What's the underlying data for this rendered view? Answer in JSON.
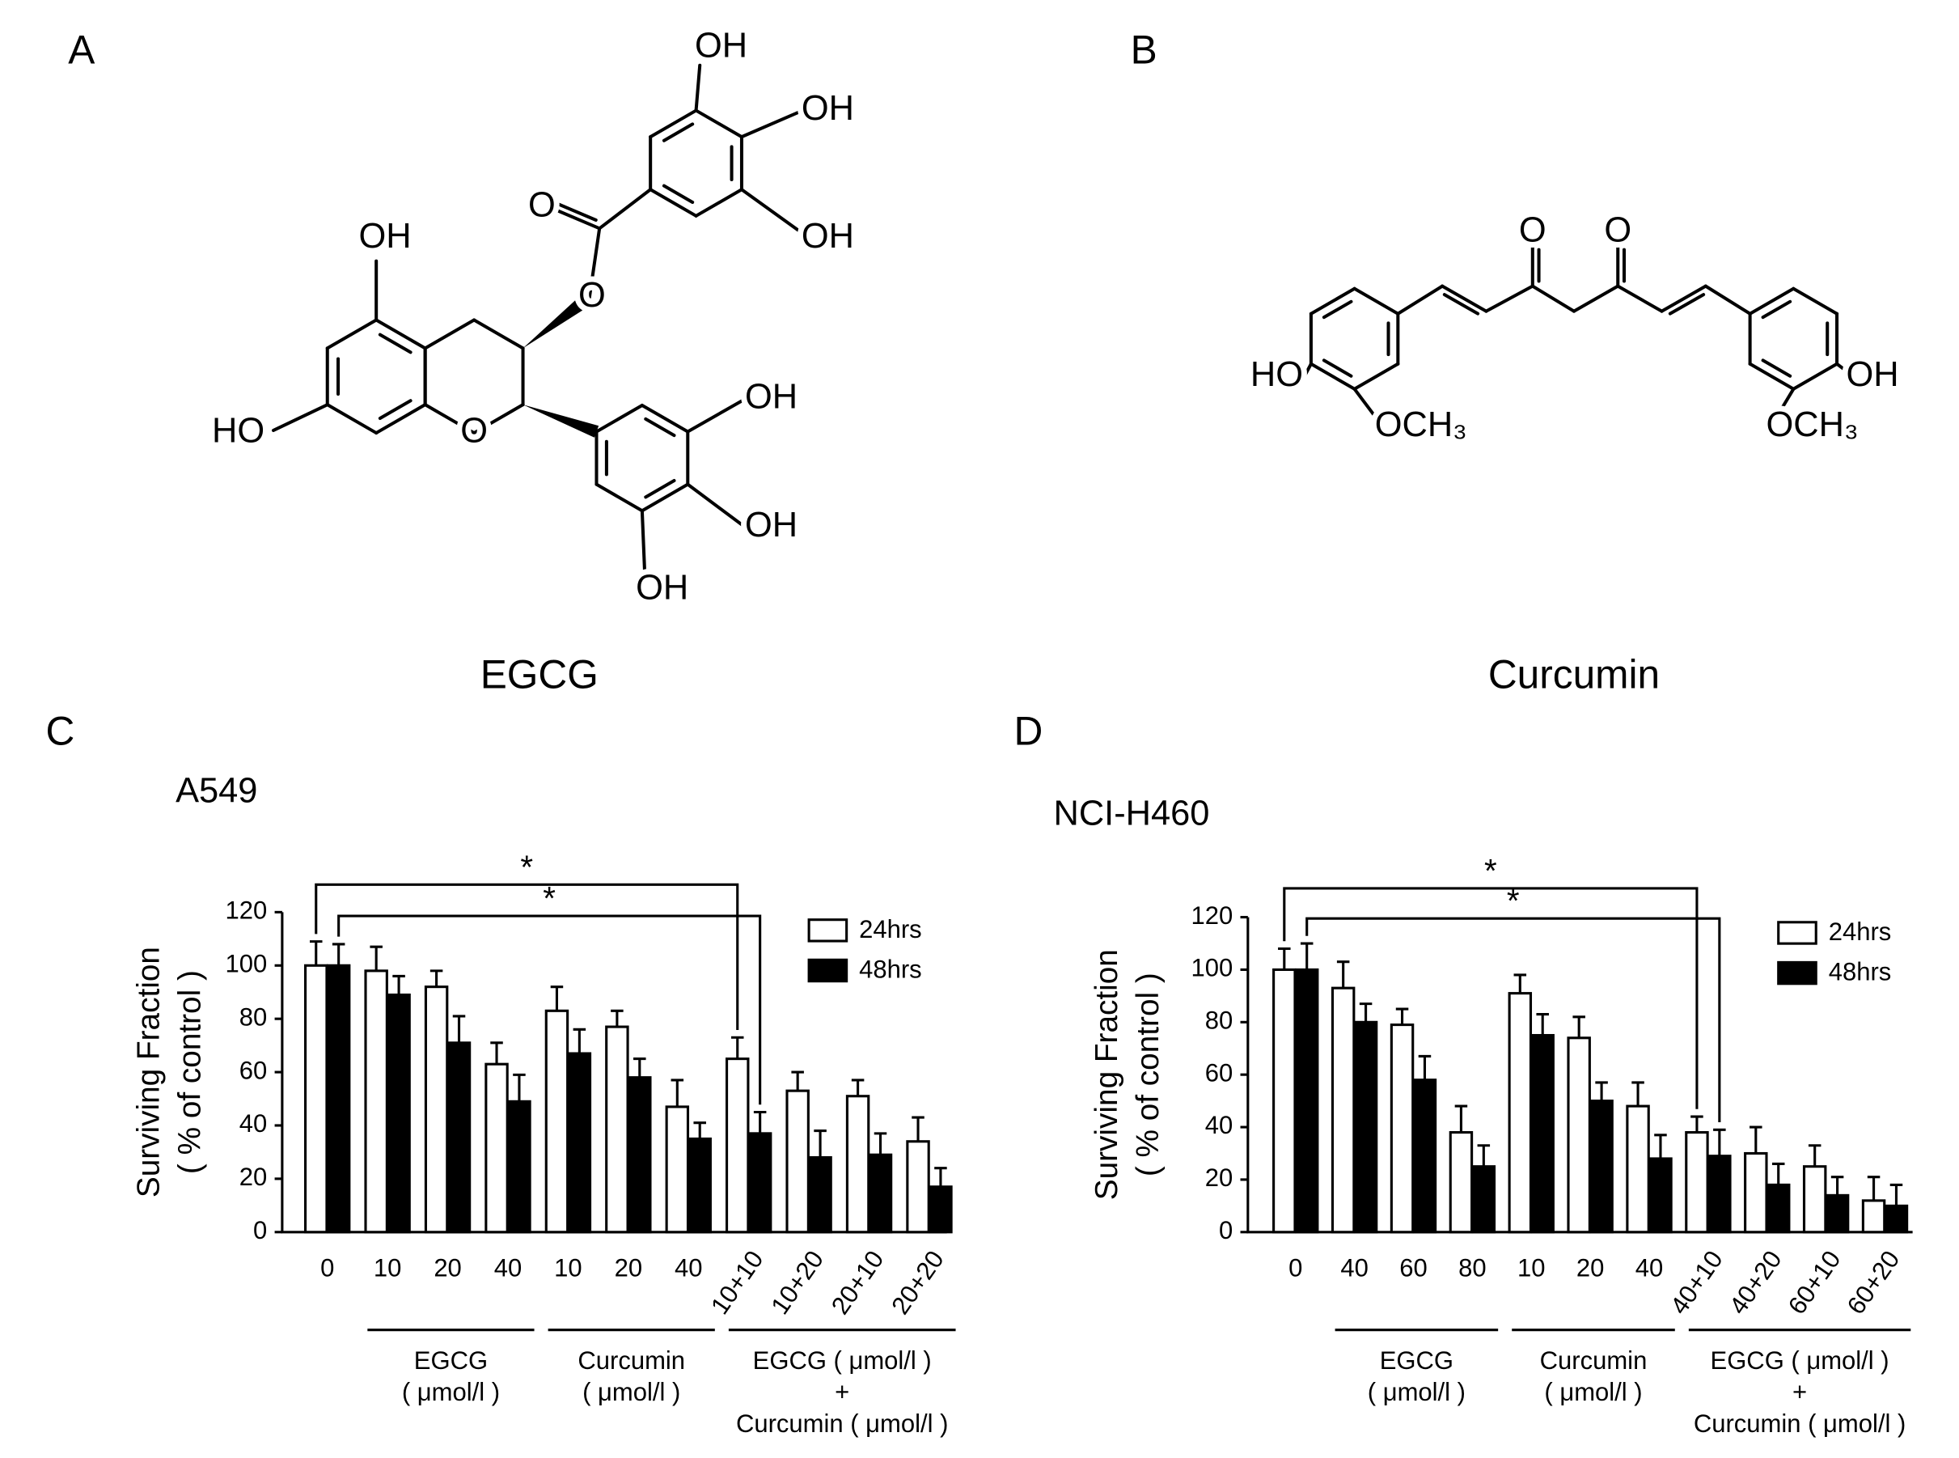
{
  "panel_labels": [
    "A",
    "B",
    "C",
    "D"
  ],
  "structures": [
    {
      "name": "EGCG",
      "atom_labels": [
        "OH",
        "OH",
        "OH",
        "O",
        "O",
        "OH",
        "HO",
        "O",
        "OH",
        "OH",
        "OH"
      ]
    },
    {
      "name": "Curcumin",
      "atom_labels": [
        "O",
        "O",
        "HO",
        "OCH₃",
        "OH",
        "OCH₃"
      ]
    }
  ],
  "chart_data": [
    {
      "type": "bar",
      "title": "A549",
      "y_label": [
        "Surviving Fraction",
        "( % of control )"
      ],
      "categories": [
        "0",
        "10",
        "20",
        "40",
        "10",
        "20",
        "40",
        "10+10",
        "10+20",
        "20+10",
        "20+20"
      ],
      "groups": [
        {
          "label": [
            "EGCG",
            "( μmol/l )"
          ]
        },
        {
          "label": [
            "Curcumin",
            "( μmol/l )"
          ]
        },
        {
          "label": [
            "EGCG ( μmol/l )",
            "+",
            "Curcumin ( μmol/l )"
          ]
        }
      ],
      "series": [
        {
          "name": "24hrs",
          "color": "#ffffff",
          "values": [
            100,
            98,
            92,
            63,
            83,
            77,
            47,
            65,
            53,
            51,
            34
          ],
          "errors": [
            9,
            9,
            6,
            8,
            9,
            6,
            10,
            8,
            7,
            6,
            9
          ]
        },
        {
          "name": "48hrs",
          "color": "#000000",
          "values": [
            100,
            89,
            71,
            49,
            67,
            58,
            35,
            37,
            28,
            29,
            17
          ],
          "errors": [
            8,
            7,
            10,
            10,
            9,
            7,
            6,
            8,
            10,
            8,
            7
          ]
        }
      ],
      "annotations": [
        "*",
        "*"
      ],
      "ylim": [
        0,
        120
      ],
      "yticks": [
        0,
        20,
        40,
        60,
        80,
        100,
        120
      ],
      "legend": "upper right"
    },
    {
      "type": "bar",
      "title": "NCI-H460",
      "y_label": [
        "Surviving Fraction",
        "( % of control )"
      ],
      "categories": [
        "0",
        "40",
        "60",
        "80",
        "10",
        "20",
        "40",
        "40+10",
        "40+20",
        "60+10",
        "60+20"
      ],
      "groups": [
        {
          "label": [
            "EGCG",
            "( μmol/l )"
          ]
        },
        {
          "label": [
            "Curcumin",
            "( μmol/l )"
          ]
        },
        {
          "label": [
            "EGCG ( μmol/l )",
            "+",
            "Curcumin ( μmol/l )"
          ]
        }
      ],
      "series": [
        {
          "name": "24hrs",
          "color": "#ffffff",
          "values": [
            100,
            93,
            79,
            38,
            91,
            74,
            48,
            38,
            30,
            25,
            12
          ],
          "errors": [
            8,
            10,
            6,
            10,
            7,
            8,
            9,
            6,
            10,
            8,
            9
          ]
        },
        {
          "name": "48hrs",
          "color": "#000000",
          "values": [
            100,
            80,
            58,
            25,
            75,
            50,
            28,
            29,
            18,
            14,
            10
          ],
          "errors": [
            10,
            7,
            9,
            8,
            8,
            7,
            9,
            10,
            8,
            7,
            8
          ]
        }
      ],
      "annotations": [
        "*",
        "*"
      ],
      "ylim": [
        0,
        120
      ],
      "yticks": [
        0,
        20,
        40,
        60,
        80,
        100,
        120
      ],
      "legend": "upper right"
    }
  ]
}
